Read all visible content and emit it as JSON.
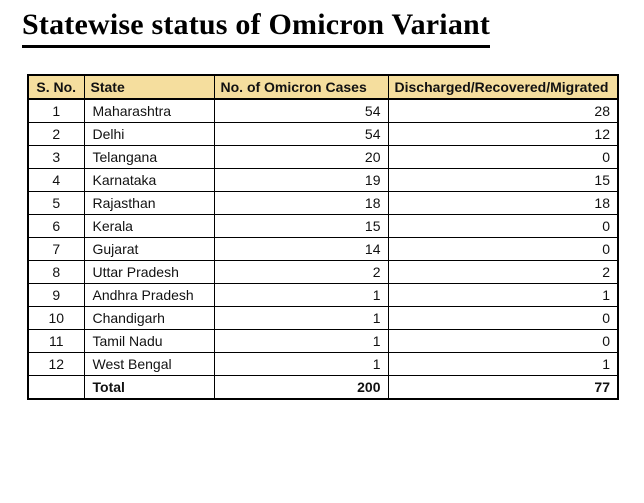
{
  "page": {
    "title": "Statewise status of Omicron Variant"
  },
  "colors": {
    "header_bg": "#F5DE9E",
    "border": "#000000",
    "text": "#111111"
  },
  "table": {
    "columns": {
      "sno": "S. No.",
      "state": "State",
      "cases": "No. of Omicron Cases",
      "discharged": "Discharged/Recovered/Migrated"
    },
    "rows": [
      {
        "sno": "1",
        "state": "Maharashtra",
        "cases": "54",
        "discharged": "28"
      },
      {
        "sno": "2",
        "state": "Delhi",
        "cases": "54",
        "discharged": "12"
      },
      {
        "sno": "3",
        "state": "Telangana",
        "cases": "20",
        "discharged": "0"
      },
      {
        "sno": "4",
        "state": "Karnataka",
        "cases": "19",
        "discharged": "15"
      },
      {
        "sno": "5",
        "state": "Rajasthan",
        "cases": "18",
        "discharged": "18"
      },
      {
        "sno": "6",
        "state": "Kerala",
        "cases": "15",
        "discharged": "0"
      },
      {
        "sno": "7",
        "state": "Gujarat",
        "cases": "14",
        "discharged": "0"
      },
      {
        "sno": "8",
        "state": "Uttar Pradesh",
        "cases": "2",
        "discharged": "2"
      },
      {
        "sno": "9",
        "state": "Andhra Pradesh",
        "cases": "1",
        "discharged": "1"
      },
      {
        "sno": "10",
        "state": "Chandigarh",
        "cases": "1",
        "discharged": "0"
      },
      {
        "sno": "11",
        "state": "Tamil Nadu",
        "cases": "1",
        "discharged": "0"
      },
      {
        "sno": "12",
        "state": "West Bengal",
        "cases": "1",
        "discharged": "1"
      }
    ],
    "total": {
      "label": "Total",
      "cases": "200",
      "discharged": "77"
    }
  }
}
